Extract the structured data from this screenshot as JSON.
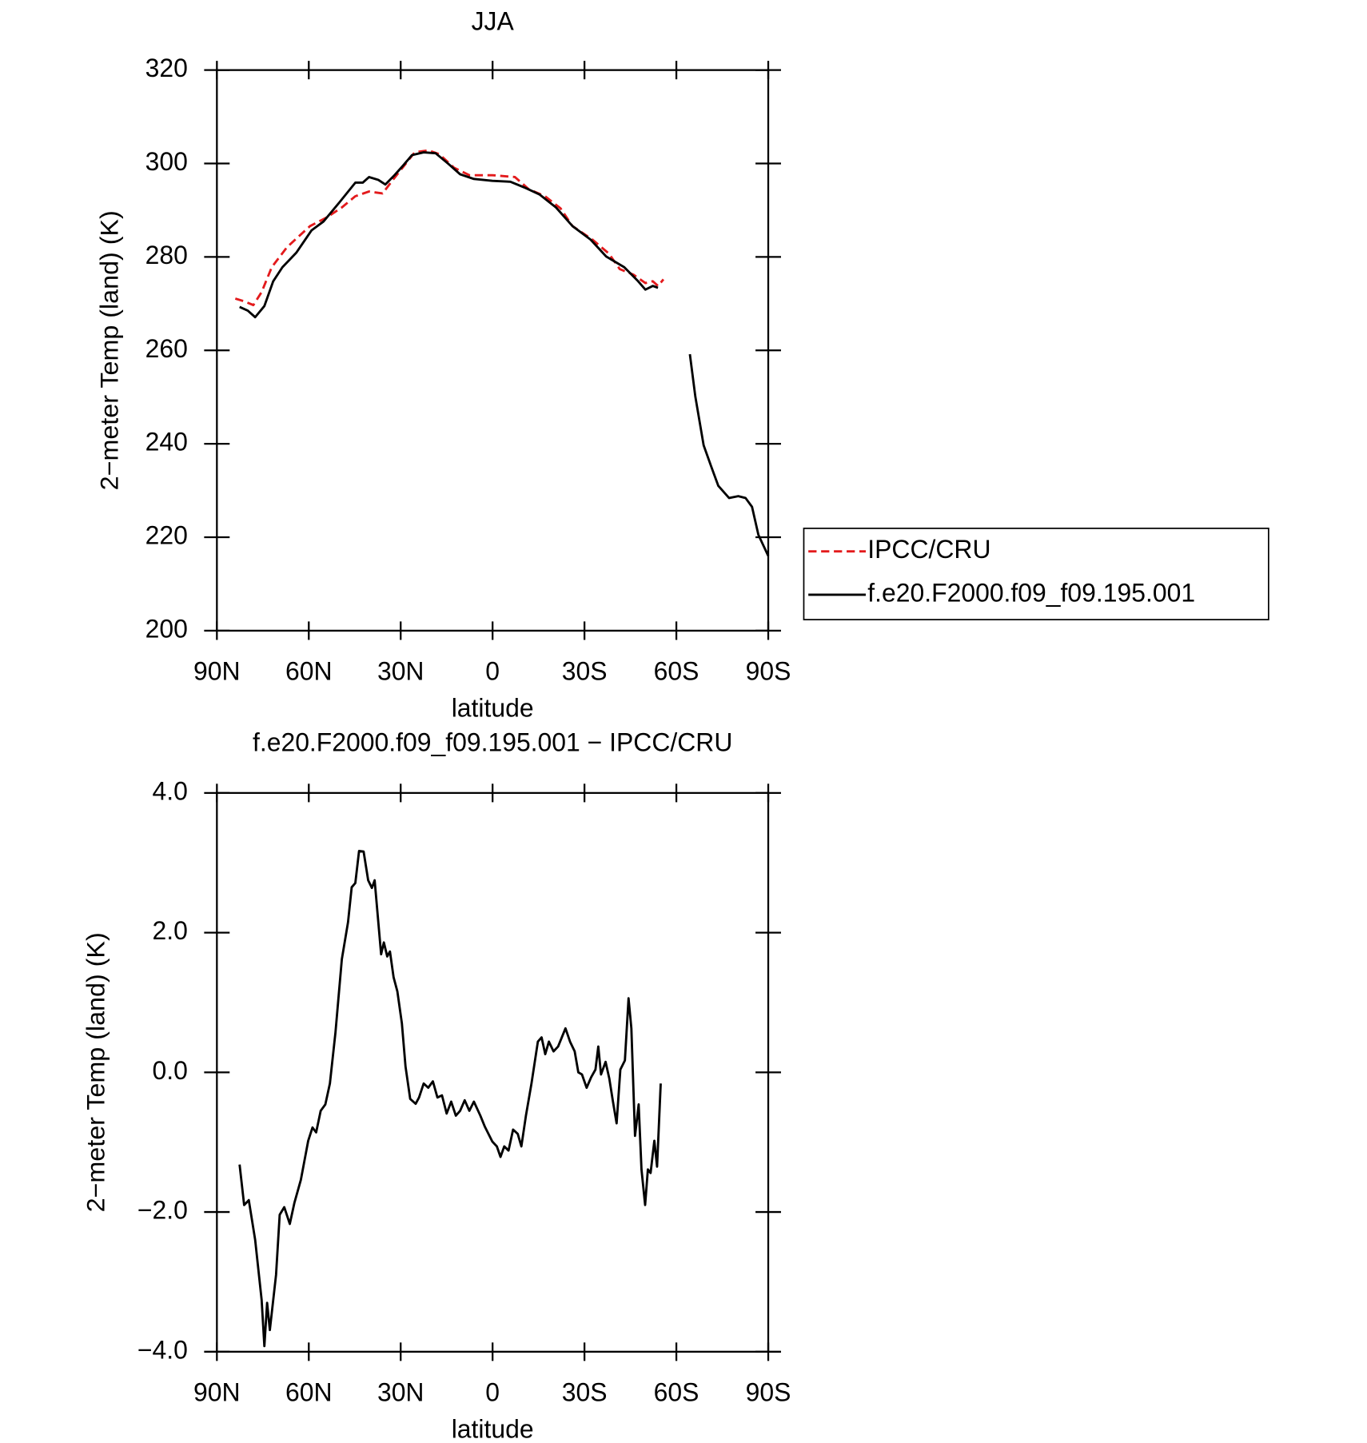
{
  "chart_data": [
    {
      "type": "line",
      "title": "JJA",
      "x_label": "latitude",
      "y_label": "2−meter Temp (land) (K)",
      "xlim": [
        90,
        -90
      ],
      "xticks": [
        {
          "value": 90,
          "label": "90N"
        },
        {
          "value": 60,
          "label": "60N"
        },
        {
          "value": 30,
          "label": "30N"
        },
        0,
        {
          "value": -30,
          "label": "30S"
        },
        {
          "value": -60,
          "label": "60S"
        },
        {
          "value": -90,
          "label": "90S"
        }
      ],
      "ylim": [
        200,
        320
      ],
      "yticks": [
        200,
        220,
        240,
        260,
        280,
        300,
        320
      ],
      "legend": "right",
      "series": [
        {
          "name": "IPCC/CRU",
          "color": "#e31a1c",
          "dashed": true,
          "x": [
            84.0,
            81.1,
            78.1,
            75.4,
            72.1,
            67.1,
            59.6,
            54.3,
            49.2,
            44.8,
            40.3,
            35.9,
            32.3,
            28.4,
            25.4,
            21.0,
            17.4,
            12.6,
            7.6,
            0.1,
            -7.3,
            -11.8,
            -17.1,
            -22.2,
            -26.1,
            -32.6,
            -38.0,
            -41.5,
            -46.0,
            -49.9,
            -52.3,
            -54.0,
            -55.8
          ],
          "values": [
            271.1,
            270.5,
            269.7,
            272.5,
            277.8,
            282.1,
            286.6,
            288.4,
            290.6,
            293.0,
            294.0,
            293.6,
            296.7,
            299.9,
            302.4,
            302.8,
            302.0,
            299.1,
            297.5,
            297.5,
            297.1,
            294.5,
            293.0,
            290.4,
            286.6,
            283.7,
            280.7,
            277.4,
            276.2,
            274.4,
            274.8,
            273.8,
            275.2
          ]
        },
        {
          "name": "f.e20.F2000.f09_f09.195.001",
          "color": "#000000",
          "dashed": false,
          "x": [
            82.6,
            79.9,
            77.5,
            74.5,
            71.6,
            68.6,
            64.1,
            59.1,
            55.2,
            50.1,
            44.8,
            42.4,
            40.3,
            37.3,
            35.0,
            32.0,
            29.3,
            26.3,
            22.5,
            18.6,
            14.4,
            10.6,
            6.1,
            0.1,
            -5.8,
            -10.3,
            -15.3,
            -20.7,
            -26.1,
            -32.0,
            -37.1,
            -43.0,
            -47.5,
            -49.9,
            -52.3,
            -54.0,
            null,
            -64.4,
            -66.2,
            -68.9,
            -71.3,
            -73.7,
            -77.2,
            -80.2,
            -82.6,
            -84.7,
            -86.8,
            -90.0
          ],
          "values": [
            269.3,
            268.5,
            267.1,
            269.5,
            274.8,
            277.8,
            280.9,
            285.7,
            287.6,
            291.6,
            295.9,
            295.9,
            297.1,
            296.5,
            295.5,
            297.5,
            299.5,
            301.8,
            302.4,
            302.2,
            299.9,
            297.7,
            296.7,
            296.3,
            296.1,
            294.9,
            293.4,
            290.6,
            286.6,
            283.7,
            280.1,
            277.8,
            274.8,
            273.0,
            273.8,
            273.4,
            null,
            259.2,
            250.1,
            239.7,
            235.3,
            231.0,
            228.4,
            228.8,
            228.4,
            226.5,
            220.5,
            216.0
          ]
        }
      ]
    },
    {
      "type": "line",
      "title": "f.e20.F2000.f09_f09.195.001 − IPCC/CRU",
      "x_label": "latitude",
      "y_label": "2−meter Temp (land) (K)",
      "xlim": [
        90,
        -90
      ],
      "xticks": [
        {
          "value": 90,
          "label": "90N"
        },
        {
          "value": 60,
          "label": "60N"
        },
        {
          "value": 30,
          "label": "30N"
        },
        0,
        {
          "value": -30,
          "label": "30S"
        },
        {
          "value": -60,
          "label": "60S"
        },
        {
          "value": -90,
          "label": "90S"
        }
      ],
      "ylim": [
        -4,
        4
      ],
      "yticks": [
        {
          "value": -4,
          "label": "−4.0"
        },
        {
          "value": -2,
          "label": "−2.0"
        },
        {
          "value": 0,
          "label": "0.0"
        },
        {
          "value": 2,
          "label": "2.0"
        },
        {
          "value": 4,
          "label": "4.0"
        }
      ],
      "series": [
        {
          "color": "#000000",
          "dashed": false,
          "x": [
            82.6,
            81.1,
            79.6,
            77.5,
            75.4,
            74.5,
            73.6,
            72.7,
            70.7,
            69.5,
            68.0,
            66.2,
            64.7,
            62.6,
            60.2,
            58.8,
            57.6,
            56.1,
            54.6,
            53.1,
            51.3,
            49.2,
            47.2,
            46.0,
            44.8,
            43.6,
            42.1,
            40.6,
            39.4,
            38.5,
            36.4,
            35.5,
            34.4,
            33.5,
            32.3,
            31.1,
            29.6,
            28.4,
            26.9,
            25.1,
            24.0,
            22.5,
            21.0,
            19.5,
            18.0,
            16.5,
            15.0,
            13.5,
            12.0,
            10.6,
            9.1,
            7.6,
            6.1,
            4.0,
            2.5,
            0.1,
            -1.4,
            -2.6,
            -3.8,
            -5.2,
            -6.7,
            -8.2,
            -9.4,
            -10.9,
            -12.7,
            -14.8,
            -16.0,
            -17.2,
            -18.4,
            -19.9,
            -21.4,
            -23.8,
            -25.3,
            -26.8,
            -28.0,
            -29.2,
            -30.7,
            -32.2,
            -33.6,
            -34.5,
            -35.4,
            -36.9,
            -38.1,
            -39.3,
            -40.5,
            -41.7,
            -43.2,
            -44.4,
            -45.3,
            -46.5,
            -47.7,
            -48.6,
            -49.8,
            -50.7,
            -51.6,
            -52.8,
            -53.7,
            -54.9
          ],
          "values": [
            -1.32,
            -1.9,
            -1.83,
            -2.4,
            -3.26,
            -3.92,
            -3.3,
            -3.69,
            -2.9,
            -2.04,
            -1.93,
            -2.17,
            -1.87,
            -1.54,
            -0.98,
            -0.79,
            -0.86,
            -0.55,
            -0.46,
            -0.16,
            0.57,
            1.62,
            2.15,
            2.65,
            2.71,
            3.17,
            3.16,
            2.75,
            2.64,
            2.75,
            1.69,
            1.86,
            1.66,
            1.73,
            1.36,
            1.16,
            0.7,
            0.08,
            -0.38,
            -0.45,
            -0.36,
            -0.16,
            -0.22,
            -0.13,
            -0.36,
            -0.33,
            -0.59,
            -0.42,
            -0.62,
            -0.55,
            -0.4,
            -0.55,
            -0.42,
            -0.62,
            -0.78,
            -0.99,
            -1.06,
            -1.21,
            -1.06,
            -1.12,
            -0.82,
            -0.88,
            -1.06,
            -0.62,
            -0.16,
            0.44,
            0.5,
            0.26,
            0.44,
            0.3,
            0.37,
            0.63,
            0.44,
            0.3,
            0.0,
            -0.03,
            -0.22,
            -0.07,
            0.04,
            0.37,
            -0.03,
            0.15,
            -0.09,
            -0.42,
            -0.73,
            0.04,
            0.17,
            1.06,
            0.63,
            -0.91,
            -0.46,
            -1.39,
            -1.9,
            -1.39,
            -1.44,
            -0.98,
            -1.35,
            -0.16
          ]
        }
      ]
    }
  ]
}
